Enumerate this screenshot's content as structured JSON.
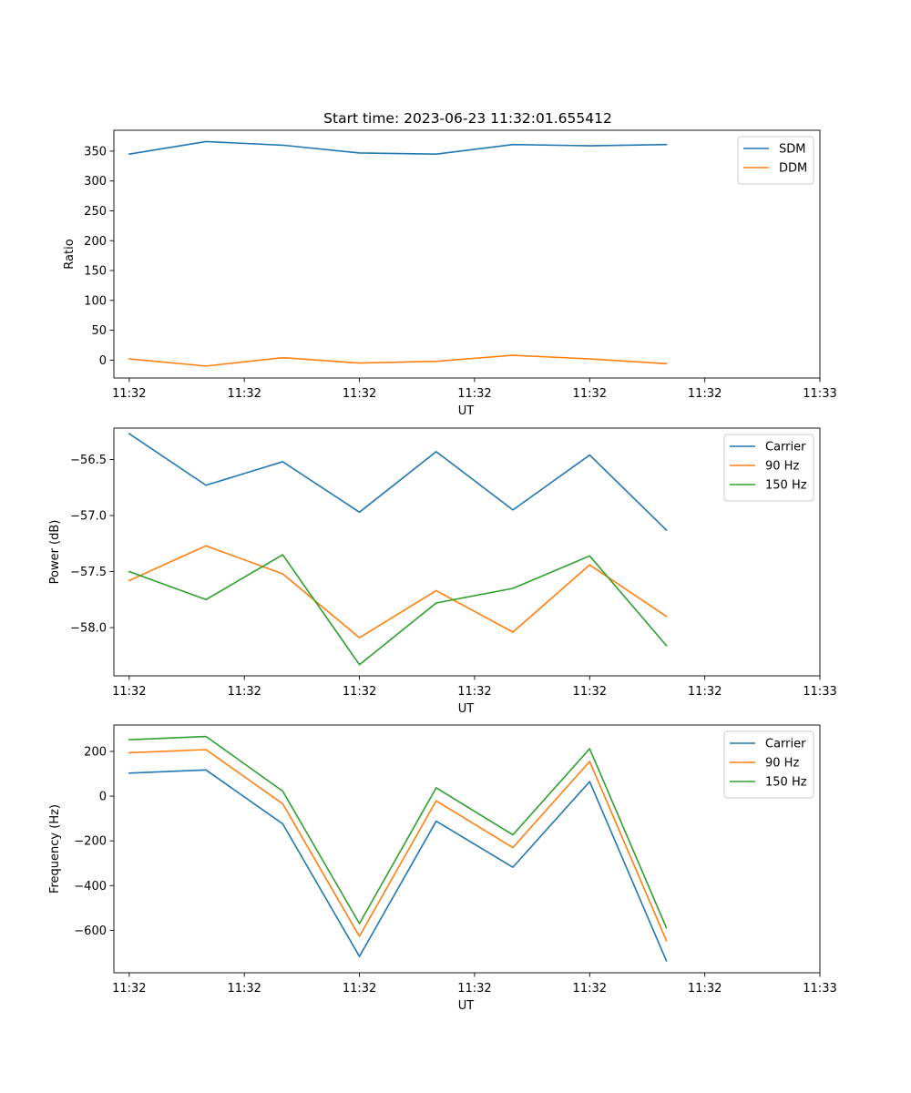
{
  "figure": {
    "title": "Start time: 2023-06-23 11:32:01.655412"
  },
  "colors": {
    "blue": "#1f77b4",
    "orange": "#ff7f0e",
    "green": "#2ca02c"
  },
  "chart_data": [
    {
      "type": "line",
      "title": "Start time: 2023-06-23 11:32:01.655412",
      "xlabel": "UT",
      "ylabel": "Ratio",
      "x": [
        1,
        2,
        3,
        4,
        5,
        6,
        7,
        8
      ],
      "xlim": [
        0.8,
        10.0
      ],
      "x_ticks": [
        1.0,
        2.5,
        4.0,
        5.5,
        7.0,
        8.5,
        10.0
      ],
      "x_tick_labels": [
        "11:32",
        "11:32",
        "11:32",
        "11:32",
        "11:32",
        "11:32",
        "11:33"
      ],
      "ylim": [
        -30,
        385
      ],
      "y_ticks": [
        0,
        50,
        100,
        150,
        200,
        250,
        300,
        350
      ],
      "y_tick_labels": [
        "0",
        "50",
        "100",
        "150",
        "200",
        "250",
        "300",
        "350"
      ],
      "legend": "top-right",
      "series": [
        {
          "name": "SDM",
          "color": "#1f77b4",
          "values": [
            345,
            366,
            360,
            347,
            345,
            361,
            359,
            361
          ]
        },
        {
          "name": "DDM",
          "color": "#ff7f0e",
          "values": [
            2,
            -10,
            4,
            -5,
            -2,
            8,
            2,
            -6
          ]
        }
      ]
    },
    {
      "type": "line",
      "title": "",
      "xlabel": "UT",
      "ylabel": "Power (dB)",
      "x": [
        1,
        2,
        3,
        4,
        5,
        6,
        7,
        8
      ],
      "xlim": [
        0.8,
        10.0
      ],
      "x_ticks": [
        1.0,
        2.5,
        4.0,
        5.5,
        7.0,
        8.5,
        10.0
      ],
      "x_tick_labels": [
        "11:32",
        "11:32",
        "11:32",
        "11:32",
        "11:32",
        "11:32",
        "11:33"
      ],
      "ylim": [
        -58.43,
        -56.22
      ],
      "y_ticks": [
        -58.0,
        -57.5,
        -57.0,
        -56.5
      ],
      "y_tick_labels": [
        "−58.0",
        "−57.5",
        "−57.0",
        "−56.5"
      ],
      "legend": "top-right",
      "series": [
        {
          "name": "Carrier",
          "color": "#1f77b4",
          "values": [
            -56.27,
            -56.73,
            -56.52,
            -56.97,
            -56.43,
            -56.95,
            -56.46,
            -57.13
          ]
        },
        {
          "name": "90 Hz",
          "color": "#ff7f0e",
          "values": [
            -57.58,
            -57.27,
            -57.52,
            -58.09,
            -57.67,
            -58.04,
            -57.44,
            -57.9
          ]
        },
        {
          "name": "150 Hz",
          "color": "#2ca02c",
          "values": [
            -57.5,
            -57.75,
            -57.35,
            -58.33,
            -57.78,
            -57.65,
            -57.36,
            -58.16
          ]
        }
      ]
    },
    {
      "type": "line",
      "title": "",
      "xlabel": "UT",
      "ylabel": "Frequency (Hz)",
      "x": [
        1,
        2,
        3,
        4,
        5,
        6,
        7,
        8
      ],
      "xlim": [
        0.8,
        10.0
      ],
      "x_ticks": [
        1.0,
        2.5,
        4.0,
        5.5,
        7.0,
        8.5,
        10.0
      ],
      "x_tick_labels": [
        "11:32",
        "11:32",
        "11:32",
        "11:32",
        "11:32",
        "11:32",
        "11:33"
      ],
      "ylim": [
        -790,
        318
      ],
      "y_ticks": [
        -600,
        -400,
        -200,
        0,
        200
      ],
      "y_tick_labels": [
        "−600",
        "−400",
        "−200",
        "0",
        "200"
      ],
      "legend": "top-right",
      "series": [
        {
          "name": "Carrier",
          "color": "#1f77b4",
          "values": [
            103,
            117,
            -124,
            -717,
            -112,
            -318,
            65,
            -737
          ]
        },
        {
          "name": "90 Hz",
          "color": "#ff7f0e",
          "values": [
            194,
            208,
            -34,
            -627,
            -21,
            -230,
            155,
            -646
          ]
        },
        {
          "name": "150 Hz",
          "color": "#2ca02c",
          "values": [
            252,
            267,
            22,
            -570,
            37,
            -173,
            212,
            -589
          ]
        }
      ]
    }
  ]
}
